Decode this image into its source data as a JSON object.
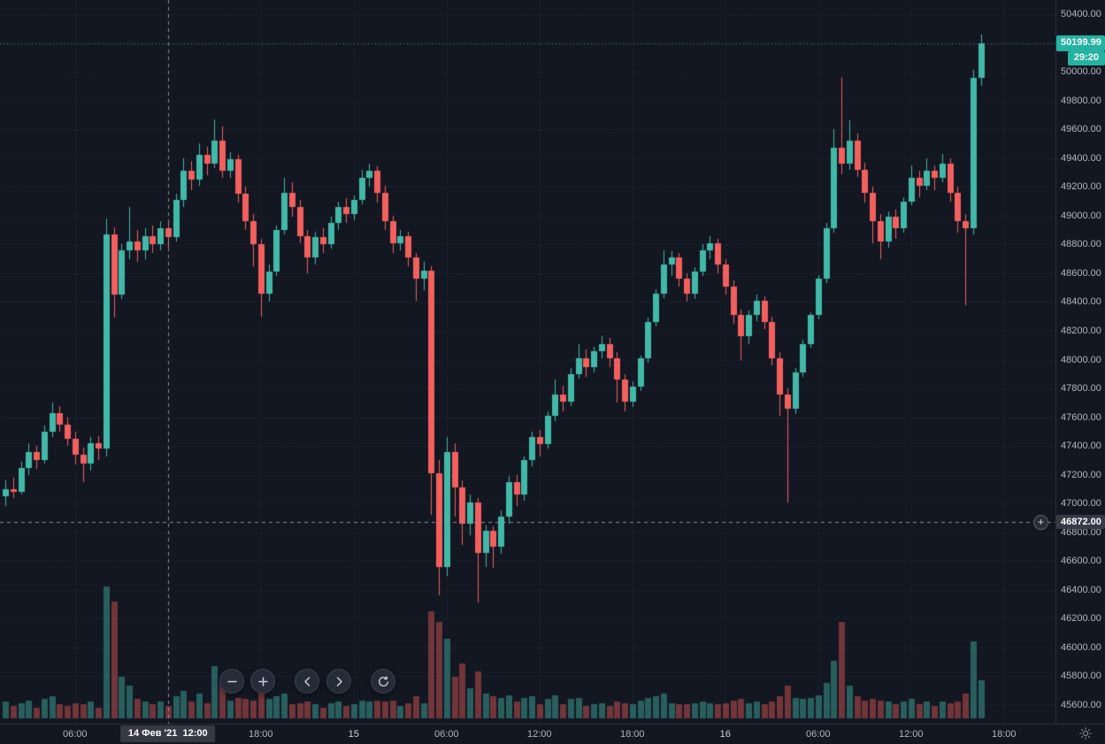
{
  "colors": {
    "background": "#131722",
    "grid": "rgba(171,178,197,0.14)",
    "axis_text": "#b2b5be",
    "axis_text_day": "#d1d4dc",
    "axis_border": "#2a2e39",
    "candle_up": "#42b9a8",
    "candle_down": "#f2605e",
    "volume_up": "rgba(66,185,168,0.45)",
    "volume_down": "rgba(242,96,94,0.42)",
    "last_price_badge_bg": "#24b2a3",
    "last_price_line": "rgba(66,185,168,0.7)",
    "crosshair": "#9598a1",
    "crosshair_badge_bg": "#363a45"
  },
  "price_axis": {
    "min": 45600,
    "max": 50400,
    "step": 200,
    "labels": [
      "50400.00",
      "50200.00",
      "50000.00",
      "49800.00",
      "49600.00",
      "49400.00",
      "49200.00",
      "49000.00",
      "48800.00",
      "48600.00",
      "48400.00",
      "48200.00",
      "48000.00",
      "47800.00",
      "47600.00",
      "47400.00",
      "47200.00",
      "47000.00",
      "46800.00",
      "46600.00",
      "46400.00",
      "46200.00",
      "46000.00",
      "45800.00",
      "45600.00"
    ]
  },
  "time_axis": {
    "labels": [
      {
        "text": "06:00",
        "t": 9
      },
      {
        "text": "12:00",
        "t": 21
      },
      {
        "text": "18:00",
        "t": 33
      },
      {
        "text": "15",
        "t": 45,
        "day": true
      },
      {
        "text": "06:00",
        "t": 57
      },
      {
        "text": "12:00",
        "t": 69
      },
      {
        "text": "18:00",
        "t": 81
      },
      {
        "text": "16",
        "t": 93,
        "day": true
      },
      {
        "text": "06:00",
        "t": 105
      },
      {
        "text": "12:00",
        "t": 117
      },
      {
        "text": "18:00",
        "t": 129
      }
    ]
  },
  "last_price": {
    "label": "50199.99",
    "value": 50199.99,
    "countdown": "29:20"
  },
  "crosshair": {
    "price": 46872,
    "price_label": "46872.00",
    "time_label": "14 Фев '21  12:00",
    "candle_index": 21
  },
  "icons": {
    "plus": "+",
    "corner": "sun-gear"
  },
  "nav": {
    "buttons": [
      {
        "name": "zoom-out",
        "icon": "minus"
      },
      {
        "name": "zoom-in",
        "icon": "plus"
      },
      {
        "name": "scroll-left",
        "icon": "chevron-left"
      },
      {
        "name": "scroll-right",
        "icon": "chevron-right"
      },
      {
        "name": "reset-chart",
        "icon": "reset"
      }
    ]
  },
  "chart_data": {
    "type": "candlestick",
    "interval_minutes": 30,
    "start_time": "14 Фев '21 01:30",
    "price_range": [
      45600,
      50400
    ],
    "grid": true,
    "columns": [
      "open",
      "high",
      "low",
      "close",
      "volume"
    ],
    "candles": [
      [
        47050,
        47160,
        46980,
        47100,
        12
      ],
      [
        47100,
        47180,
        47040,
        47080,
        9
      ],
      [
        47080,
        47290,
        47060,
        47250,
        11
      ],
      [
        47250,
        47420,
        47200,
        47360,
        13
      ],
      [
        47360,
        47400,
        47240,
        47300,
        8
      ],
      [
        47300,
        47540,
        47280,
        47500,
        14
      ],
      [
        47500,
        47700,
        47460,
        47630,
        16
      ],
      [
        47630,
        47680,
        47500,
        47550,
        10
      ],
      [
        47550,
        47600,
        47400,
        47450,
        9
      ],
      [
        47450,
        47500,
        47270,
        47340,
        11
      ],
      [
        47340,
        47390,
        47150,
        47280,
        10
      ],
      [
        47280,
        47460,
        47230,
        47420,
        12
      ],
      [
        47420,
        47470,
        47300,
        47380,
        8
      ],
      [
        47380,
        48980,
        47330,
        48870,
        96
      ],
      [
        48870,
        48920,
        48290,
        48450,
        85
      ],
      [
        48450,
        48800,
        48420,
        48760,
        30
      ],
      [
        48760,
        49060,
        48700,
        48820,
        24
      ],
      [
        48820,
        48900,
        48680,
        48760,
        14
      ],
      [
        48760,
        48910,
        48700,
        48860,
        12
      ],
      [
        48860,
        48930,
        48740,
        48800,
        10
      ],
      [
        48800,
        48960,
        48760,
        48910,
        12
      ],
      [
        48910,
        48950,
        48780,
        48850,
        9
      ],
      [
        48850,
        49150,
        48820,
        49110,
        16
      ],
      [
        49110,
        49400,
        49060,
        49310,
        20
      ],
      [
        49310,
        49380,
        49180,
        49250,
        12
      ],
      [
        49250,
        49500,
        49210,
        49420,
        18
      ],
      [
        49420,
        49480,
        49280,
        49360,
        11
      ],
      [
        49360,
        49670,
        49330,
        49520,
        38
      ],
      [
        49520,
        49620,
        49260,
        49310,
        26
      ],
      [
        49310,
        49440,
        49260,
        49390,
        13
      ],
      [
        49390,
        49420,
        49090,
        49150,
        15
      ],
      [
        49150,
        49200,
        48900,
        48960,
        14
      ],
      [
        48960,
        49010,
        48650,
        48800,
        13
      ],
      [
        48800,
        48840,
        48300,
        48460,
        22
      ],
      [
        48460,
        48660,
        48400,
        48610,
        14
      ],
      [
        48610,
        48930,
        48580,
        48900,
        16
      ],
      [
        48900,
        49260,
        48870,
        49160,
        18
      ],
      [
        49160,
        49230,
        48990,
        49060,
        10
      ],
      [
        49060,
        49110,
        48810,
        48860,
        11
      ],
      [
        48860,
        48900,
        48600,
        48710,
        12
      ],
      [
        48710,
        48890,
        48660,
        48850,
        10
      ],
      [
        48850,
        48910,
        48740,
        48800,
        8
      ],
      [
        48800,
        48990,
        48770,
        48950,
        11
      ],
      [
        48950,
        49100,
        48900,
        49060,
        12
      ],
      [
        49060,
        49120,
        48950,
        49010,
        9
      ],
      [
        49010,
        49140,
        48970,
        49110,
        10
      ],
      [
        49110,
        49320,
        49080,
        49260,
        13
      ],
      [
        49260,
        49360,
        49200,
        49310,
        12
      ],
      [
        49310,
        49340,
        49090,
        49160,
        13
      ],
      [
        49160,
        49210,
        48900,
        48960,
        12
      ],
      [
        48960,
        49000,
        48740,
        48810,
        13
      ],
      [
        48810,
        48900,
        48760,
        48860,
        9
      ],
      [
        48860,
        48890,
        48650,
        48710,
        11
      ],
      [
        48710,
        48740,
        48410,
        48560,
        16
      ],
      [
        48560,
        48680,
        48480,
        48620,
        11
      ],
      [
        48620,
        48650,
        46920,
        47210,
        78
      ],
      [
        47210,
        47300,
        46360,
        46560,
        70
      ],
      [
        46560,
        47460,
        46500,
        47360,
        58
      ],
      [
        47360,
        47420,
        46910,
        47110,
        30
      ],
      [
        47110,
        47160,
        46710,
        46860,
        40
      ],
      [
        46860,
        47060,
        46780,
        47010,
        22
      ],
      [
        47010,
        47040,
        46310,
        46660,
        34
      ],
      [
        46660,
        46850,
        46560,
        46810,
        18
      ],
      [
        46810,
        46840,
        46550,
        46700,
        16
      ],
      [
        46700,
        46950,
        46650,
        46910,
        15
      ],
      [
        46910,
        47190,
        46860,
        47150,
        17
      ],
      [
        47150,
        47200,
        46980,
        47060,
        12
      ],
      [
        47060,
        47330,
        47020,
        47300,
        15
      ],
      [
        47300,
        47500,
        47260,
        47460,
        16
      ],
      [
        47460,
        47510,
        47330,
        47410,
        10
      ],
      [
        47410,
        47640,
        47380,
        47610,
        14
      ],
      [
        47610,
        47860,
        47570,
        47760,
        17
      ],
      [
        47760,
        47820,
        47640,
        47710,
        10
      ],
      [
        47710,
        47940,
        47680,
        47900,
        14
      ],
      [
        47900,
        48110,
        47870,
        48010,
        15
      ],
      [
        48010,
        48070,
        47880,
        47950,
        9
      ],
      [
        47950,
        48090,
        47910,
        48060,
        10
      ],
      [
        48060,
        48160,
        48010,
        48110,
        11
      ],
      [
        48110,
        48150,
        47950,
        48010,
        9
      ],
      [
        48010,
        48050,
        47700,
        47860,
        12
      ],
      [
        47860,
        47900,
        47640,
        47710,
        11
      ],
      [
        47710,
        47850,
        47670,
        47810,
        10
      ],
      [
        47810,
        48030,
        47780,
        48010,
        13
      ],
      [
        48010,
        48290,
        47980,
        48260,
        15
      ],
      [
        48260,
        48490,
        48230,
        48460,
        16
      ],
      [
        48460,
        48760,
        48430,
        48660,
        18
      ],
      [
        48660,
        48750,
        48580,
        48710,
        11
      ],
      [
        48710,
        48740,
        48510,
        48560,
        10
      ],
      [
        48560,
        48600,
        48400,
        48460,
        10
      ],
      [
        48460,
        48640,
        48420,
        48610,
        11
      ],
      [
        48610,
        48800,
        48580,
        48760,
        12
      ],
      [
        48760,
        48860,
        48700,
        48810,
        11
      ],
      [
        48810,
        48840,
        48600,
        48660,
        10
      ],
      [
        48660,
        48700,
        48450,
        48510,
        11
      ],
      [
        48510,
        48550,
        48250,
        48310,
        13
      ],
      [
        48310,
        48350,
        48000,
        48160,
        14
      ],
      [
        48160,
        48340,
        48110,
        48310,
        11
      ],
      [
        48310,
        48450,
        48270,
        48410,
        12
      ],
      [
        48410,
        48440,
        48210,
        48260,
        10
      ],
      [
        48260,
        48300,
        47960,
        48010,
        12
      ],
      [
        48010,
        48050,
        47610,
        47760,
        16
      ],
      [
        47760,
        47800,
        47010,
        47660,
        24
      ],
      [
        47660,
        47940,
        47620,
        47910,
        15
      ],
      [
        47910,
        48140,
        47880,
        48110,
        14
      ],
      [
        48110,
        48330,
        48080,
        48310,
        15
      ],
      [
        48310,
        48590,
        48280,
        48560,
        17
      ],
      [
        48560,
        48950,
        48530,
        48910,
        26
      ],
      [
        48910,
        49600,
        48880,
        49470,
        42
      ],
      [
        49470,
        49960,
        49290,
        49360,
        70
      ],
      [
        49360,
        49660,
        49320,
        49520,
        24
      ],
      [
        49520,
        49570,
        49270,
        49320,
        16
      ],
      [
        49320,
        49370,
        49090,
        49160,
        13
      ],
      [
        49160,
        49200,
        48810,
        48960,
        14
      ],
      [
        48960,
        49010,
        48700,
        48820,
        13
      ],
      [
        48820,
        49030,
        48780,
        48990,
        12
      ],
      [
        48990,
        49040,
        48840,
        48910,
        10
      ],
      [
        48910,
        49130,
        48880,
        49100,
        12
      ],
      [
        49100,
        49350,
        49070,
        49260,
        14
      ],
      [
        49260,
        49310,
        49130,
        49210,
        10
      ],
      [
        49210,
        49400,
        49180,
        49310,
        12
      ],
      [
        49310,
        49350,
        49180,
        49260,
        9
      ],
      [
        49260,
        49430,
        49230,
        49360,
        12
      ],
      [
        49360,
        49400,
        49100,
        49160,
        11
      ],
      [
        49160,
        49200,
        48880,
        48960,
        12
      ],
      [
        48960,
        49010,
        48380,
        48910,
        18
      ],
      [
        48910,
        50010,
        48870,
        49960,
        56
      ],
      [
        49960,
        50260,
        49900,
        50199.99,
        28
      ]
    ]
  }
}
